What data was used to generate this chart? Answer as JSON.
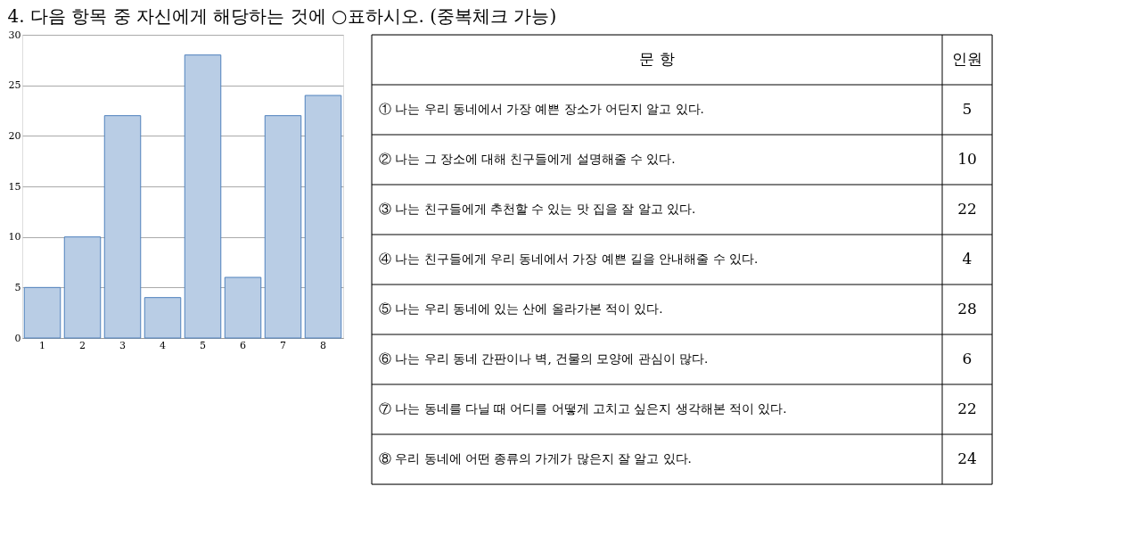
{
  "chart_data": {
    "type": "bar",
    "title": "4. 다음 항목 중 자신에게 해당하는 것에 ○표하시오. (중복체크 가능)",
    "categories": [
      "1",
      "2",
      "3",
      "4",
      "5",
      "6",
      "7",
      "8"
    ],
    "values": [
      5,
      10,
      22,
      4,
      28,
      6,
      22,
      24
    ],
    "color": "#b9cde5",
    "ylim": [
      0,
      30
    ],
    "yticks": [
      0,
      5,
      10,
      15,
      20,
      25,
      30
    ],
    "grid": "y",
    "annotations": [
      "문  항",
      "인원",
      "① 나는 우리 동네에서 가장 예쁜 장소가 어딘지 알고 있다.",
      "5",
      "② 나는 그 장소에 대해 친구들에게 설명해줄 수 있다.",
      "10",
      "③ 나는 친구들에게 추천할 수 있는 맛 집을 잘 알고 있다.",
      "22",
      "④ 나는 친구들에게 우리 동네에서 가장 예쁜 길을 안내해줄 수 있다.",
      "4",
      "⑤ 나는 우리 동네에 있는 산에 올라가본 적이 있다.",
      "28",
      "⑥ 나는 우리 동네 간판이나 벽, 건물의 모양에 관심이 많다.",
      "6",
      "⑦ 나는 동네를 다닐 때 어디를 어떻게 고치고 싶은지 생각해본 적이 있다.",
      "22",
      "⑧ 우리 동네에 어떤 종류의 가게가 많은지 잘 알고 있다.",
      "24"
    ]
  }
}
